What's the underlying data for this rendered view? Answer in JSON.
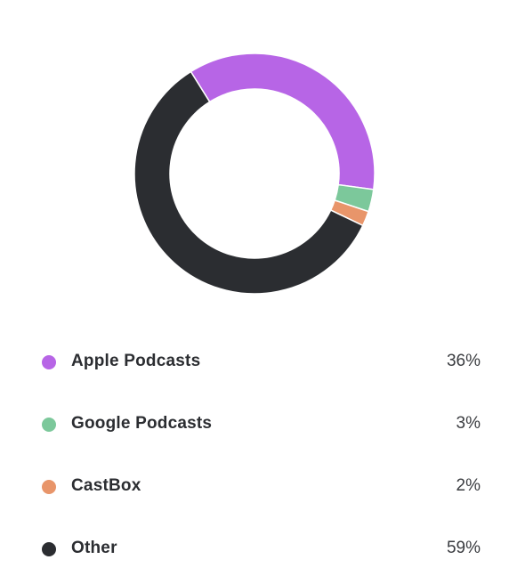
{
  "chart_data": {
    "type": "pie",
    "donut": true,
    "legend_position": "bottom",
    "series": [
      {
        "name": "Apple Podcasts",
        "value": 36,
        "value_label": "36%",
        "color": "#b765e6"
      },
      {
        "name": "Google Podcasts",
        "value": 3,
        "value_label": "3%",
        "color": "#7cc89b"
      },
      {
        "name": "CastBox",
        "value": 2,
        "value_label": "2%",
        "color": "#e8956a"
      },
      {
        "name": "Other",
        "value": 59,
        "value_label": "59%",
        "color": "#2b2d31"
      }
    ]
  }
}
